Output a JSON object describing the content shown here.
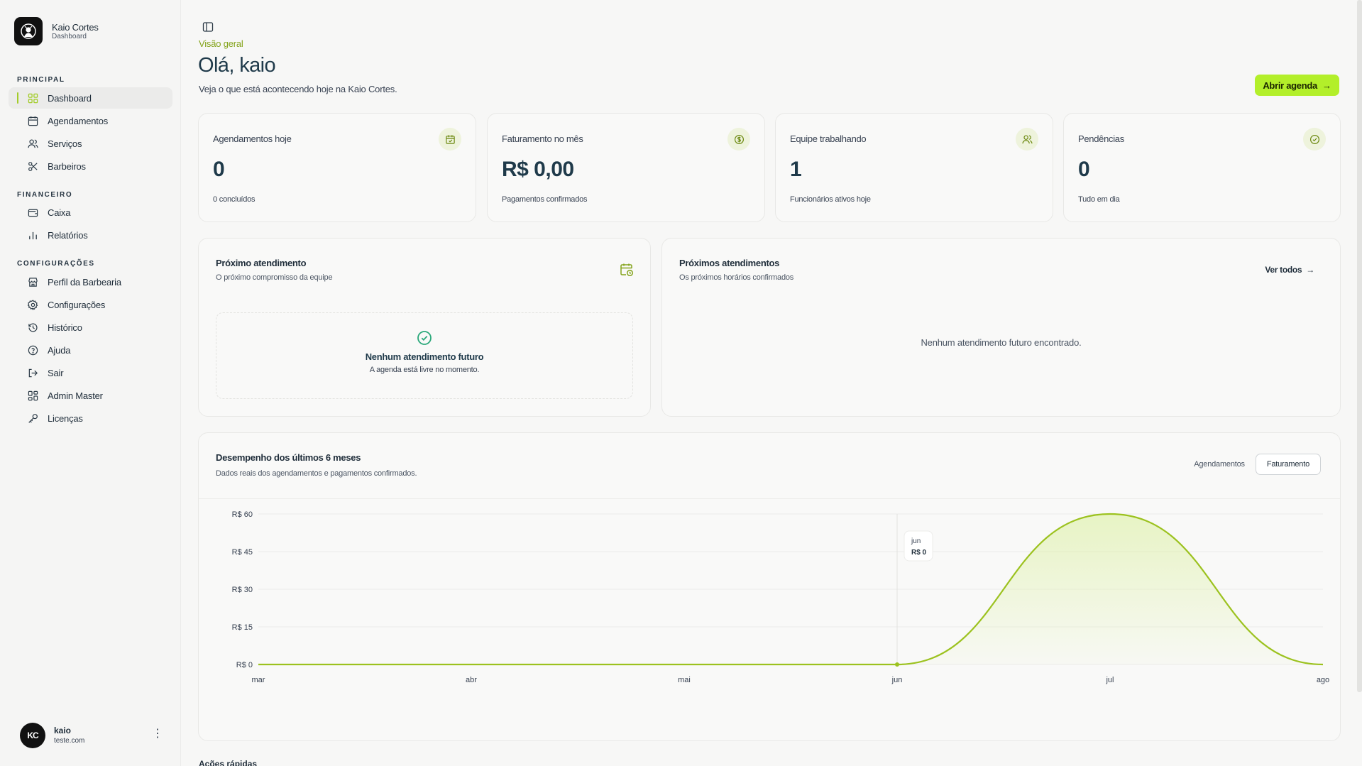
{
  "brand": {
    "name": "Kaio Cortes",
    "subtitle": "Dashboard"
  },
  "sidebar": {
    "sections": [
      {
        "title": "PRINCIPAL"
      },
      {
        "title": "FINANCEIRO"
      },
      {
        "title": "CONFIGURAÇÕES"
      }
    ],
    "items": [
      {
        "label": "Dashboard",
        "icon": "grid-icon",
        "active": true
      },
      {
        "label": "Agendamentos",
        "icon": "calendar-icon"
      },
      {
        "label": "Serviços",
        "icon": "users-icon"
      },
      {
        "label": "Barbeiros",
        "icon": "scissors-icon"
      },
      {
        "label": "Caixa",
        "icon": "wallet-icon"
      },
      {
        "label": "Relatórios",
        "icon": "bar-chart-icon"
      },
      {
        "label": "Perfil da Barbearia",
        "icon": "store-icon"
      },
      {
        "label": "Configurações",
        "icon": "gear-icon"
      },
      {
        "label": "Histórico",
        "icon": "history-icon"
      },
      {
        "label": "Ajuda",
        "icon": "help-icon"
      },
      {
        "label": "Sair",
        "icon": "logout-icon"
      },
      {
        "label": "Admin Master",
        "icon": "layout-icon"
      },
      {
        "label": "Licenças",
        "icon": "key-icon"
      }
    ]
  },
  "user": {
    "initials": "KC",
    "name": "kaio",
    "email": "teste.com",
    "menu": "⋮"
  },
  "header": {
    "eyebrow": "Visão geral",
    "title": "Olá, kaio",
    "subtitle": "Veja o que está acontecendo hoje na Kaio Cortes.",
    "cta": "Abrir agenda",
    "cta_arrow": "→"
  },
  "stats": [
    {
      "title": "Agendamentos hoje",
      "value": "0",
      "foot": "0 concluídos",
      "icon": "calendar-check-icon"
    },
    {
      "title": "Faturamento no mês",
      "value": "R$ 0,00",
      "foot": "Pagamentos confirmados",
      "icon": "dollar-circle-icon"
    },
    {
      "title": "Equipe trabalhando",
      "value": "1",
      "foot": "Funcionários ativos hoje",
      "icon": "users-icon"
    },
    {
      "title": "Pendências",
      "value": "0",
      "foot": "Tudo em dia",
      "icon": "check-circle-icon"
    }
  ],
  "next_appointment": {
    "title": "Próximo atendimento",
    "subtitle": "O próximo compromisso da equipe",
    "empty_title": "Nenhum atendimento futuro",
    "empty_sub": "A agenda está livre no momento."
  },
  "upcoming": {
    "title": "Próximos atendimentos",
    "subtitle": "Os próximos horários confirmados",
    "link": "Ver todos",
    "link_arrow": "→",
    "empty": "Nenhum atendimento futuro encontrado."
  },
  "performance": {
    "title": "Desempenho dos últimos 6 meses",
    "subtitle": "Dados reais dos agendamentos e pagamentos confirmados.",
    "toggle": [
      "Agendamentos",
      "Faturamento"
    ],
    "selected": "Faturamento",
    "tooltip": {
      "label": "jun",
      "value": "R$ 0"
    }
  },
  "chart_data": {
    "type": "area",
    "categories": [
      "mar",
      "abr",
      "mai",
      "jun",
      "jul",
      "ago"
    ],
    "series": [
      {
        "values": [
          0,
          0,
          0,
          0,
          60,
          0
        ]
      }
    ],
    "yticks": [
      "R$ 0",
      "R$ 15",
      "R$ 30",
      "R$ 45",
      "R$ 60"
    ],
    "ylim": [
      0,
      60
    ],
    "grid": true,
    "line_color": "#9cc21f",
    "fill_color": "#d9ef9a"
  },
  "quick_actions": {
    "title": "Ações rápidas"
  }
}
